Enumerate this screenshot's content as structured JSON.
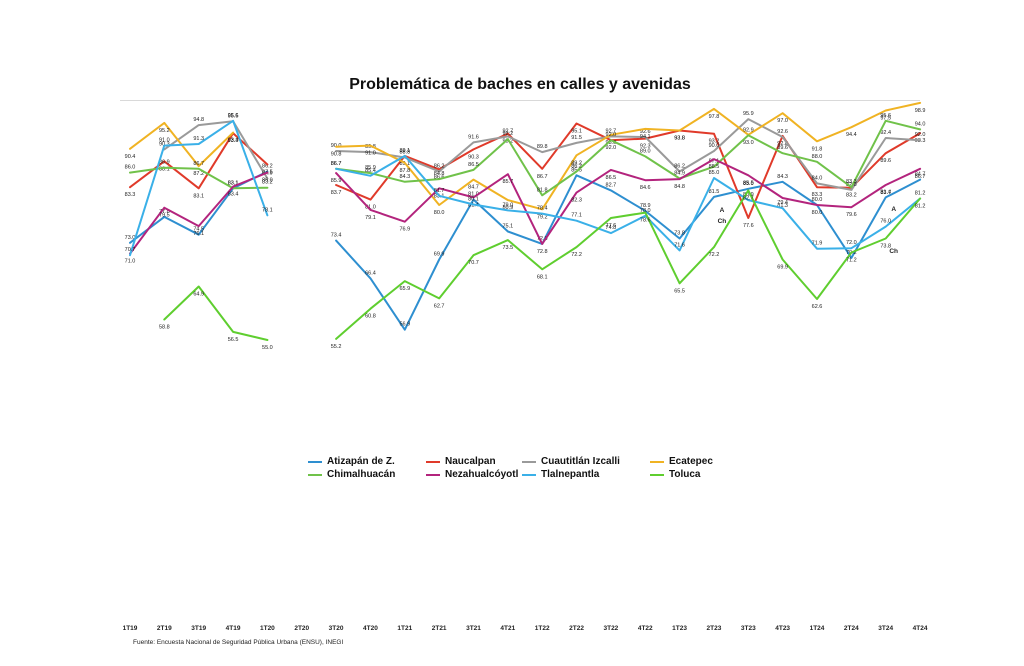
{
  "chart_data": {
    "type": "line",
    "title": "Problemática de baches en calles y avenidas",
    "source": "Fuente: Encuesta Nacional de Seguridad Pública Urbana (ENSU), INEGI",
    "categories": [
      "1T19",
      "2T19",
      "3T19",
      "4T19",
      "1T20",
      "2T20",
      "3T20",
      "4T20",
      "1T21",
      "2T21",
      "3T21",
      "4T21",
      "1T22",
      "2T22",
      "3T22",
      "4T22",
      "1T23",
      "2T23",
      "3T23",
      "4T23",
      "1T24",
      "2T24",
      "3T24",
      "4T24"
    ],
    "ylim": [
      50,
      100
    ],
    "series": [
      {
        "name": "Atizapán de Z.",
        "color": "#2e8fd0",
        "values": [
          73.0,
          77.8,
          74.5,
          83.1,
          86.2,
          null,
          73.4,
          66.4,
          56.9,
          69.9,
          81.0,
          75.1,
          72.8,
          85.5,
          82.7,
          78.9,
          73.8,
          81.5,
          83.0,
          84.3,
          80.0,
          70.2,
          81.4,
          84.7
        ]
      },
      {
        "name": "Naucalpan",
        "color": "#e03a2a",
        "values": [
          83.3,
          88.1,
          83.1,
          93.3,
          87.5,
          null,
          83.7,
          81.0,
          89.1,
          86.6,
          90.3,
          93.2,
          86.7,
          95.1,
          92.0,
          92.3,
          93.8,
          93.2,
          77.6,
          92.8,
          83.3,
          83.2,
          89.6,
          93.3
        ]
      },
      {
        "name": "Cuautitlán Izcalli",
        "color": "#9a9a9a",
        "values": [
          null,
          90.3,
          94.8,
          95.5,
          84.9,
          null,
          90.0,
          89.8,
          88.8,
          86.2,
          91.6,
          92.7,
          89.8,
          91.5,
          92.7,
          92.6,
          86.2,
          90.0,
          95.9,
          92.6,
          84.0,
          82.8,
          92.4,
          92.0
        ]
      },
      {
        "name": "Ecatepec",
        "color": "#f0b323",
        "values": [
          90.4,
          95.2,
          87.2,
          93.4,
          null,
          null,
          90.8,
          91.0,
          87.8,
          80.0,
          84.7,
          80.9,
          79.2,
          89.2,
          93.0,
          94.1,
          93.8,
          97.8,
          93.0,
          97.0,
          91.8,
          94.4,
          97.5,
          98.9
        ]
      },
      {
        "name": "Chimalhuacán",
        "color": "#70c24a",
        "values": [
          86.0,
          86.9,
          86.7,
          83.1,
          83.2,
          null,
          86.7,
          85.9,
          84.3,
          84.8,
          86.5,
          92.2,
          81.8,
          86.2,
          92.0,
          89.0,
          84.9,
          87.1,
          92.9,
          89.6,
          88.0,
          83.3,
          95.6,
          94.0
        ]
      },
      {
        "name": "Nezahualcóyotl",
        "color": "#b3247d",
        "values": [
          71.0,
          79.5,
          76.1,
          83.4,
          86.0,
          null,
          85.9,
          79.1,
          76.9,
          83.1,
          81.4,
          85.7,
          72.8,
          82.3,
          86.5,
          84.6,
          84.8,
          88.5,
          85.5,
          81.3,
          80.0,
          79.6,
          83.7,
          86.7
        ]
      },
      {
        "name": "Tlalnepantla",
        "color": "#3ab0e8",
        "values": [
          70.7,
          91.0,
          91.3,
          95.6,
          78.1,
          null,
          86.7,
          85.4,
          89.1,
          81.7,
          80.1,
          79.0,
          78.4,
          77.1,
          74.8,
          78.0,
          71.6,
          85.0,
          80.9,
          79.4,
          71.9,
          72.0,
          76.0,
          81.2
        ]
      },
      {
        "name": "Toluca",
        "color": "#5fce2f",
        "values": [
          null,
          58.8,
          64.9,
          56.5,
          55.0,
          null,
          55.2,
          60.8,
          65.9,
          62.7,
          70.7,
          73.5,
          68.1,
          72.2,
          77.6,
          78.6,
          65.5,
          72.2,
          82.7,
          69.9,
          62.6,
          71.2,
          73.8,
          81.2
        ]
      }
    ],
    "annotations": [
      "A",
      "Ch",
      "A",
      "Ch"
    ],
    "legend_position": "bottom"
  }
}
